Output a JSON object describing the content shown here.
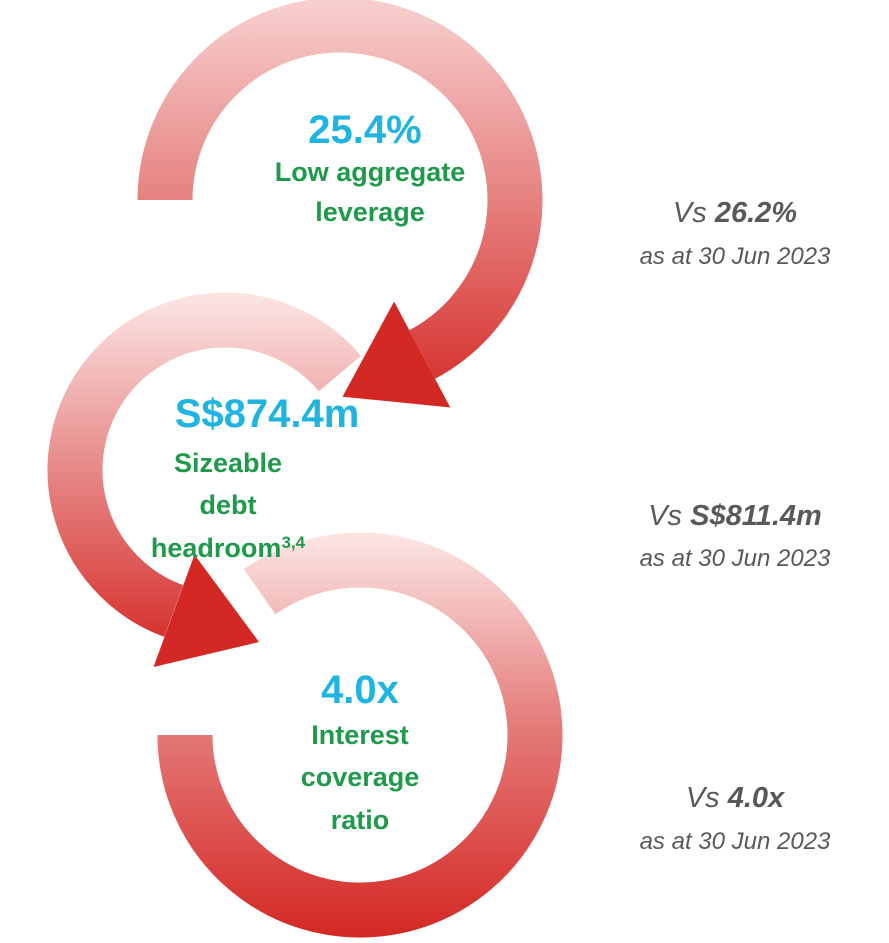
{
  "items": [
    {
      "value": "25.4%",
      "label": [
        "Low aggregate",
        "leverage"
      ],
      "comparison": {
        "prefix": "Vs",
        "value": "26.2%",
        "note": "as at 30 Jun 2023"
      }
    },
    {
      "value": "S$874.4m",
      "label": [
        "Sizeable",
        "debt",
        "headroom"
      ],
      "superscript": "3,4",
      "comparison": {
        "prefix": "Vs",
        "value": "S$811.4m",
        "note": "as at 30 Jun 2023"
      }
    },
    {
      "value": "4.0x",
      "label": [
        "Interest",
        "coverage",
        "ratio"
      ],
      "comparison": {
        "prefix": "Vs",
        "value": "4.0x",
        "note": "as at 30 Jun 2023"
      }
    }
  ]
}
